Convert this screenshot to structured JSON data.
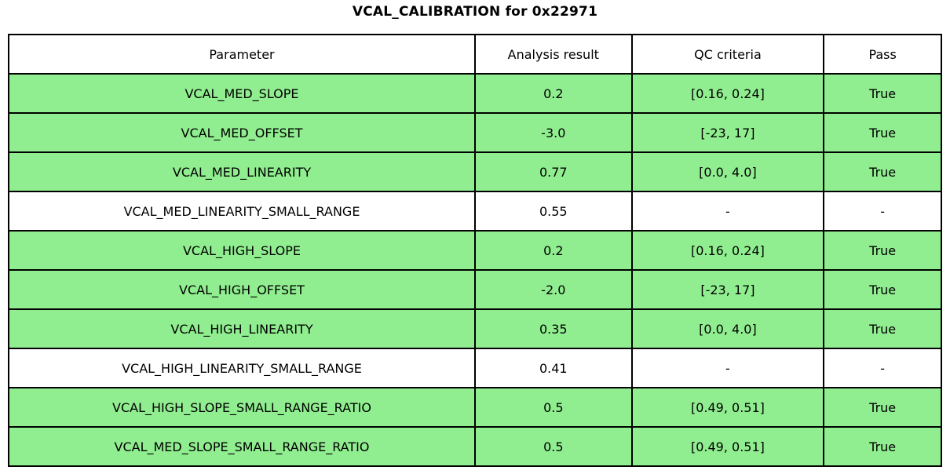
{
  "title": "VCAL_CALIBRATION for 0x22971",
  "colors": {
    "pass_green": "#90ee90",
    "background": "#ffffff",
    "border": "#000000"
  },
  "chart_data": {
    "type": "table",
    "title": "VCAL_CALIBRATION for 0x22971",
    "columns": [
      "Parameter",
      "Analysis result",
      "QC criteria",
      "Pass"
    ],
    "rows": [
      {
        "parameter": "VCAL_MED_SLOPE",
        "analysis_result": "0.2",
        "qc_criteria": "[0.16, 0.24]",
        "pass": "True",
        "row_color": "#90ee90"
      },
      {
        "parameter": "VCAL_MED_OFFSET",
        "analysis_result": "-3.0",
        "qc_criteria": "[-23, 17]",
        "pass": "True",
        "row_color": "#90ee90"
      },
      {
        "parameter": "VCAL_MED_LINEARITY",
        "analysis_result": "0.77",
        "qc_criteria": "[0.0, 4.0]",
        "pass": "True",
        "row_color": "#90ee90"
      },
      {
        "parameter": "VCAL_MED_LINEARITY_SMALL_RANGE",
        "analysis_result": "0.55",
        "qc_criteria": "-",
        "pass": "-",
        "row_color": "#ffffff"
      },
      {
        "parameter": "VCAL_HIGH_SLOPE",
        "analysis_result": "0.2",
        "qc_criteria": "[0.16, 0.24]",
        "pass": "True",
        "row_color": "#90ee90"
      },
      {
        "parameter": "VCAL_HIGH_OFFSET",
        "analysis_result": "-2.0",
        "qc_criteria": "[-23, 17]",
        "pass": "True",
        "row_color": "#90ee90"
      },
      {
        "parameter": "VCAL_HIGH_LINEARITY",
        "analysis_result": "0.35",
        "qc_criteria": "[0.0, 4.0]",
        "pass": "True",
        "row_color": "#90ee90"
      },
      {
        "parameter": "VCAL_HIGH_LINEARITY_SMALL_RANGE",
        "analysis_result": "0.41",
        "qc_criteria": "-",
        "pass": "-",
        "row_color": "#ffffff"
      },
      {
        "parameter": "VCAL_HIGH_SLOPE_SMALL_RANGE_RATIO",
        "analysis_result": "0.5",
        "qc_criteria": "[0.49, 0.51]",
        "pass": "True",
        "row_color": "#90ee90"
      },
      {
        "parameter": "VCAL_MED_SLOPE_SMALL_RANGE_RATIO",
        "analysis_result": "0.5",
        "qc_criteria": "[0.49, 0.51]",
        "pass": "True",
        "row_color": "#90ee90"
      }
    ],
    "layout": {
      "legend": "none",
      "grid": "table-borders",
      "header_bg": "#ffffff",
      "pass_row_bg": "#90ee90",
      "no_criteria_row_bg": "#ffffff"
    }
  }
}
